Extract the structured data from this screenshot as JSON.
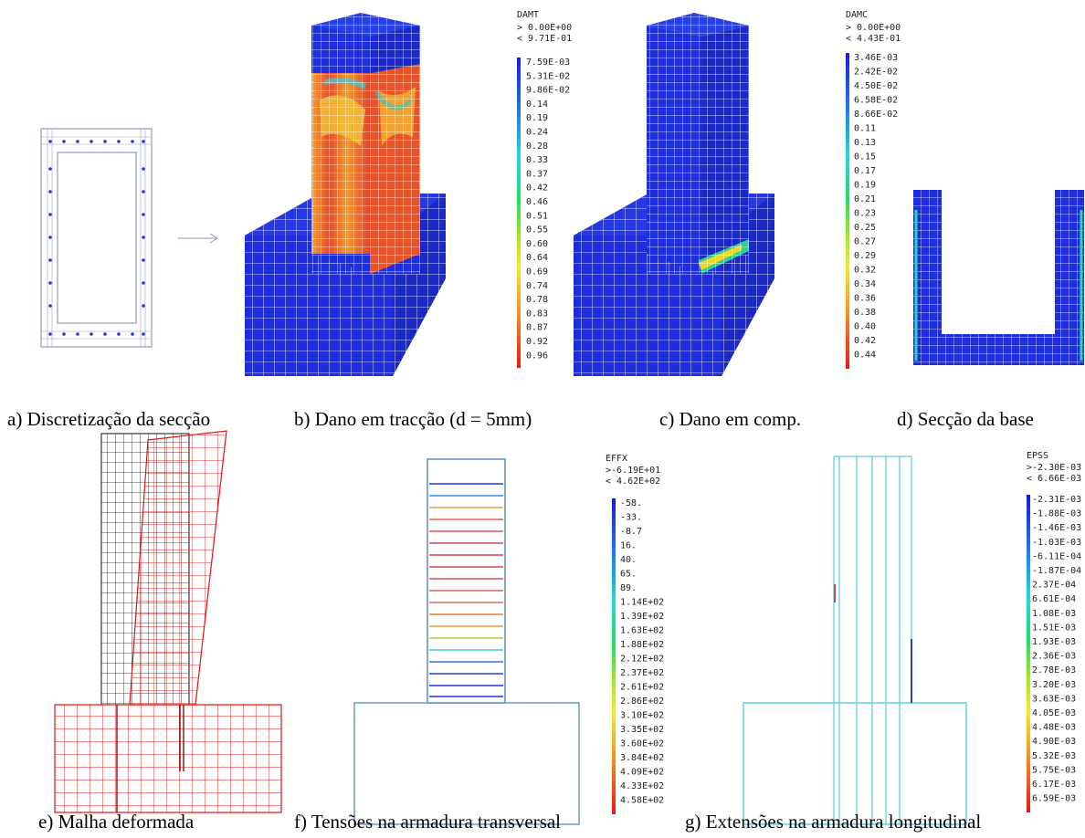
{
  "captions": {
    "a": "a) Discretização da secção",
    "b": "b) Dano em tracção (d = 5mm)",
    "c": "c) Dano em comp.",
    "d": "d) Secção da base",
    "e": "e) Malha deformada",
    "f": "f) Tensões na armadura transversal",
    "g": "g) Extensões na armadura longitudinal"
  },
  "colors": {
    "mesh_blue": "#2332e0",
    "damage_red": "#e8402a",
    "damage_orange": "#f59a2e",
    "deformed_red": "#e01414",
    "undeformed_black": "#111111",
    "rebar_cyan": "#5fd0e8",
    "outline_steel": "#6a9ac8"
  },
  "legends": {
    "damt": {
      "title": "DAMT",
      "range": [
        "> 0.00E+00",
        "< 9.71E-01"
      ],
      "labels": [
        "7.59E-03",
        "5.31E-02",
        "9.86E-02",
        "0.14",
        "0.19",
        "0.24",
        "0.28",
        "0.33",
        "0.37",
        "0.42",
        "0.46",
        "0.51",
        "0.55",
        "0.60",
        "0.64",
        "0.69",
        "0.74",
        "0.78",
        "0.83",
        "0.87",
        "0.92",
        "0.96"
      ]
    },
    "damc": {
      "title": "DAMC",
      "range": [
        "> 0.00E+00",
        "< 4.43E-01"
      ],
      "labels": [
        "3.46E-03",
        "2.42E-02",
        "4.50E-02",
        "6.58E-02",
        "8.66E-02",
        "0.11",
        "0.13",
        "0.15",
        "0.17",
        "0.19",
        "0.21",
        "0.23",
        "0.25",
        "0.27",
        "0.29",
        "0.32",
        "0.34",
        "0.36",
        "0.38",
        "0.40",
        "0.42",
        "0.44"
      ]
    },
    "effx": {
      "title": "EFFX",
      "range": [
        ">-6.19E+01",
        "< 4.62E+02"
      ],
      "labels": [
        "-58.",
        "-33.",
        "-8.7",
        "16.",
        "40.",
        "65.",
        "89.",
        "1.14E+02",
        "1.39E+02",
        "1.63E+02",
        "1.88E+02",
        "2.12E+02",
        "2.37E+02",
        "2.61E+02",
        "2.86E+02",
        "3.10E+02",
        "3.35E+02",
        "3.60E+02",
        "3.84E+02",
        "4.09E+02",
        "4.33E+02",
        "4.58E+02"
      ]
    },
    "epss": {
      "title": "EPSS",
      "range": [
        ">-2.30E-03",
        "< 6.66E-03"
      ],
      "labels": [
        "-2.31E-03",
        "-1.88E-03",
        "-1.46E-03",
        "-1.03E-03",
        "-6.11E-04",
        "-1.87E-04",
        "2.37E-04",
        "6.61E-04",
        "1.08E-03",
        "1.51E-03",
        "1.93E-03",
        "2.36E-03",
        "2.78E-03",
        "3.20E-03",
        "3.63E-03",
        "4.05E-03",
        "4.48E-03",
        "4.90E-03",
        "5.32E-03",
        "5.75E-03",
        "6.17E-03",
        "6.59E-03"
      ]
    }
  }
}
